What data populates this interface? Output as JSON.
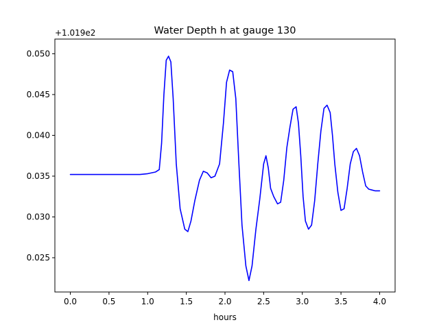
{
  "chart_data": {
    "type": "line",
    "title": "Water Depth h at gauge 130",
    "xlabel": "hours",
    "ylabel": "",
    "offset_text": "+1.019e2",
    "xlim": [
      -0.2,
      4.2
    ],
    "ylim": [
      0.0208,
      0.0518
    ],
    "xticks": [
      0.0,
      0.5,
      1.0,
      1.5,
      2.0,
      2.5,
      3.0,
      3.5,
      4.0
    ],
    "xtick_labels": [
      "0.0",
      "0.5",
      "1.0",
      "1.5",
      "2.0",
      "2.5",
      "3.0",
      "3.5",
      "4.0"
    ],
    "yticks": [
      0.025,
      0.03,
      0.035,
      0.04,
      0.045,
      0.05
    ],
    "ytick_labels": [
      "0.025",
      "0.030",
      "0.035",
      "0.040",
      "0.045",
      "0.050"
    ],
    "grid": false,
    "series": [
      {
        "color": "#0000ff",
        "x": [
          0.0,
          0.3,
          0.6,
          0.9,
          1.0,
          1.1,
          1.15,
          1.18,
          1.21,
          1.24,
          1.27,
          1.3,
          1.33,
          1.37,
          1.42,
          1.48,
          1.52,
          1.56,
          1.61,
          1.67,
          1.72,
          1.77,
          1.82,
          1.87,
          1.93,
          1.98,
          2.02,
          2.06,
          2.1,
          2.14,
          2.18,
          2.22,
          2.27,
          2.31,
          2.35,
          2.4,
          2.45,
          2.5,
          2.53,
          2.56,
          2.59,
          2.63,
          2.68,
          2.72,
          2.76,
          2.8,
          2.84,
          2.88,
          2.92,
          2.95,
          2.98,
          3.01,
          3.04,
          3.08,
          3.12,
          3.16,
          3.2,
          3.24,
          3.28,
          3.32,
          3.36,
          3.39,
          3.42,
          3.46,
          3.5,
          3.54,
          3.58,
          3.62,
          3.66,
          3.7,
          3.74,
          3.78,
          3.82,
          3.86,
          3.9,
          3.94,
          3.98,
          4.0
        ],
        "values": [
          0.0352,
          0.0352,
          0.0352,
          0.0352,
          0.0353,
          0.0355,
          0.0358,
          0.039,
          0.045,
          0.0492,
          0.0497,
          0.049,
          0.0445,
          0.0365,
          0.031,
          0.0285,
          0.0282,
          0.0295,
          0.032,
          0.0345,
          0.0356,
          0.0354,
          0.0348,
          0.035,
          0.0365,
          0.0415,
          0.0465,
          0.048,
          0.0478,
          0.0445,
          0.0365,
          0.029,
          0.024,
          0.0222,
          0.024,
          0.0285,
          0.0322,
          0.0365,
          0.0375,
          0.036,
          0.0335,
          0.0325,
          0.0316,
          0.0318,
          0.0345,
          0.0385,
          0.041,
          0.0432,
          0.0435,
          0.0415,
          0.0375,
          0.0325,
          0.0295,
          0.0285,
          0.029,
          0.032,
          0.0365,
          0.0405,
          0.0433,
          0.0437,
          0.0428,
          0.04,
          0.0365,
          0.033,
          0.0308,
          0.031,
          0.0335,
          0.0365,
          0.038,
          0.0384,
          0.0375,
          0.0355,
          0.0338,
          0.0334,
          0.0333,
          0.0332,
          0.0332,
          0.0332
        ]
      }
    ]
  }
}
